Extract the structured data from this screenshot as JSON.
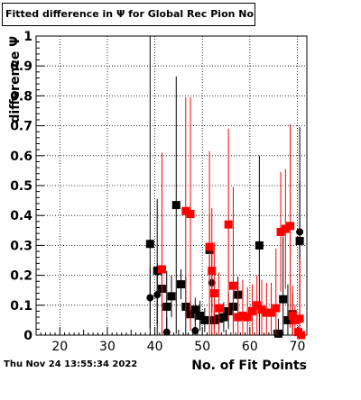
{
  "title": "Fitted difference in Ψ  for Global Rec Pion NoHits",
  "timestamp": "Thu Nov 24 13:55:34 2022",
  "colors": {
    "series_black": "#000000",
    "series_red": "#ff0000",
    "frame": "#000000",
    "grid": "#000000"
  },
  "chart_data": {
    "type": "scatter",
    "title": "Fitted difference in Ψ  for Global Rec Pion NoHits",
    "xlabel": "No. of Fit Points",
    "ylabel": "difference Ψ",
    "xlim": [
      15,
      72
    ],
    "ylim": [
      0,
      1
    ],
    "xticks": [
      "20",
      "30",
      "40",
      "50",
      "60",
      "70"
    ],
    "yticks": [
      "0",
      "0.1",
      "0.2",
      "0.3",
      "0.4",
      "0.5",
      "0.6",
      "0.7",
      "0.8",
      "0.9",
      "1"
    ],
    "grid": true,
    "series": [
      {
        "color": "#000000",
        "marker": "square",
        "points": [
          {
            "x": 39,
            "y": 0.305,
            "e": 1.0
          },
          {
            "x": 40.5,
            "y": 0.215,
            "e": 0.24
          },
          {
            "x": 41.5,
            "y": 0.155,
            "e": 0.08
          },
          {
            "x": 42.5,
            "y": 0.095,
            "e": 0.12
          },
          {
            "x": 43.5,
            "y": 0.13,
            "e": 0.07
          },
          {
            "x": 44.5,
            "y": 0.435,
            "e": 0.43
          },
          {
            "x": 45.5,
            "y": 0.17,
            "e": 0.05
          },
          {
            "x": 46.5,
            "y": 0.095,
            "e": 0.1
          },
          {
            "x": 47.5,
            "y": 0.07,
            "e": 0.05
          },
          {
            "x": 48.5,
            "y": 0.085,
            "e": 0.04
          },
          {
            "x": 49.5,
            "y": 0.065,
            "e": 0.05
          },
          {
            "x": 50.5,
            "y": 0.05,
            "e": 0.04
          },
          {
            "x": 51.5,
            "y": 0.285,
            "e": 0.12
          },
          {
            "x": 52.5,
            "y": 0.05,
            "e": 0.03
          },
          {
            "x": 53.5,
            "y": 0.055,
            "e": 0.04
          },
          {
            "x": 54.5,
            "y": 0.06,
            "e": 0.05
          },
          {
            "x": 55.5,
            "y": 0.08,
            "e": 0.06
          },
          {
            "x": 56.5,
            "y": 0.095,
            "e": 0.04
          },
          {
            "x": 57.5,
            "y": 0.135,
            "e": 0.06
          },
          {
            "x": 62,
            "y": 0.3,
            "e": 0.3
          },
          {
            "x": 66,
            "y": 0.005,
            "e": 0.05
          },
          {
            "x": 67,
            "y": 0.12,
            "e": 0.21
          },
          {
            "x": 68,
            "y": 0.05,
            "e": 0.12
          },
          {
            "x": 69,
            "y": 0.07,
            "e": 0.07
          },
          {
            "x": 70.5,
            "y": 0.315,
            "e": 0.2
          }
        ]
      },
      {
        "color": "#000000",
        "marker": "circle",
        "points": [
          {
            "x": 39,
            "y": 0.125,
            "e": 0.1
          },
          {
            "x": 40.5,
            "y": 0.135,
            "e": 0.1
          },
          {
            "x": 42.5,
            "y": 0.01,
            "e": 0.05
          },
          {
            "x": 48.5,
            "y": 0.015,
            "e": 0.04
          },
          {
            "x": 52,
            "y": 0.175,
            "e": 0.1
          },
          {
            "x": 70.5,
            "y": 0.345,
            "e": 0.35
          }
        ]
      },
      {
        "color": "#ff0000",
        "marker": "square",
        "points": [
          {
            "x": 41.5,
            "y": 0.22,
            "e": 0.39
          },
          {
            "x": 46.5,
            "y": 0.415,
            "e": 0.38
          },
          {
            "x": 47.5,
            "y": 0.405,
            "e": 0.39
          },
          {
            "x": 51.5,
            "y": 0.295,
            "e": 0.32
          },
          {
            "x": 52,
            "y": 0.215,
            "e": 0.21
          },
          {
            "x": 52.5,
            "y": 0.14,
            "e": 0.17
          },
          {
            "x": 53.5,
            "y": 0.09,
            "e": 0.12
          },
          {
            "x": 55.5,
            "y": 0.37,
            "e": 0.32
          },
          {
            "x": 56.5,
            "y": 0.165,
            "e": 0.33
          },
          {
            "x": 57.5,
            "y": 0.06,
            "e": 0.11
          },
          {
            "x": 58.5,
            "y": 0.065,
            "e": 0.12
          },
          {
            "x": 59.5,
            "y": 0.06,
            "e": 0.1
          },
          {
            "x": 60.5,
            "y": 0.08,
            "e": 0.09
          },
          {
            "x": 61.5,
            "y": 0.1,
            "e": 0.1
          },
          {
            "x": 62.5,
            "y": 0.085,
            "e": 0.1
          },
          {
            "x": 63.5,
            "y": 0.075,
            "e": 0.1
          },
          {
            "x": 64.5,
            "y": 0.075,
            "e": 0.1
          },
          {
            "x": 65.5,
            "y": 0.09,
            "e": 0.2
          },
          {
            "x": 66.5,
            "y": 0.345,
            "e": 0.2
          },
          {
            "x": 67.5,
            "y": 0.355,
            "e": 0.2
          },
          {
            "x": 68.5,
            "y": 0.365,
            "e": 0.34
          },
          {
            "x": 69,
            "y": 0.065,
            "e": 0.1
          },
          {
            "x": 69.5,
            "y": 0.05,
            "e": 0.05
          },
          {
            "x": 70.5,
            "y": 0.055,
            "e": 0.2
          },
          {
            "x": 70.2,
            "y": 0.01,
            "e": 0.02
          },
          {
            "x": 70.8,
            "y": 0.0,
            "e": 0.02
          }
        ]
      }
    ]
  }
}
